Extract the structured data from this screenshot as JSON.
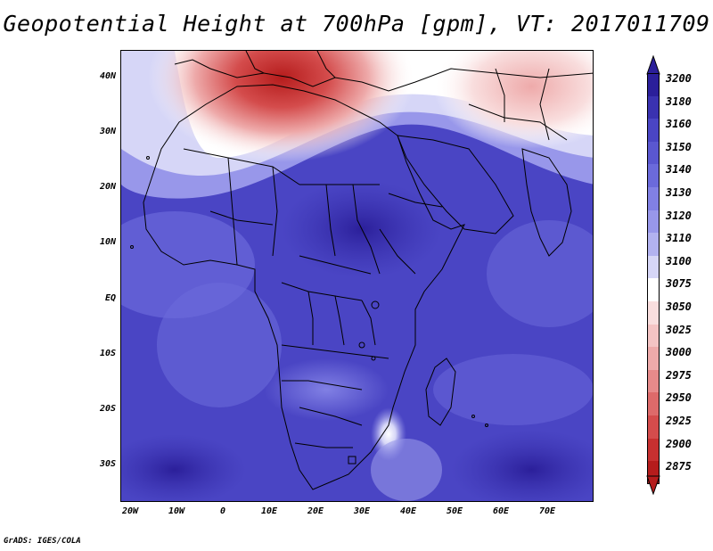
{
  "title": "Geopotential Height at 700hPa [gpm], VT: 2017011709",
  "credit": "GrADS: IGES/COLA",
  "lat_labels": [
    "40N",
    "30N",
    "20N",
    "10N",
    "EQ",
    "10S",
    "20S",
    "30S"
  ],
  "lon_labels": [
    "20W",
    "10W",
    "0",
    "10E",
    "20E",
    "30E",
    "40E",
    "50E",
    "60E",
    "70E"
  ],
  "colorbar": {
    "labels": [
      "3200",
      "3180",
      "3160",
      "3150",
      "3140",
      "3130",
      "3120",
      "3110",
      "3100",
      "3075",
      "3050",
      "3025",
      "3000",
      "2975",
      "2950",
      "2925",
      "2900",
      "2875"
    ],
    "colors": [
      "#2b1f9a",
      "#3a32b0",
      "#4a45c4",
      "#5a57d0",
      "#6b6adb",
      "#8180e4",
      "#9897ea",
      "#b2b2f0",
      "#d6d6f7",
      "#ffffff",
      "#f9dede",
      "#f4c4c4",
      "#eeaaaa",
      "#e68a8a",
      "#dd6a6a",
      "#d44c4c",
      "#c73030",
      "#b51c1c"
    ]
  }
}
